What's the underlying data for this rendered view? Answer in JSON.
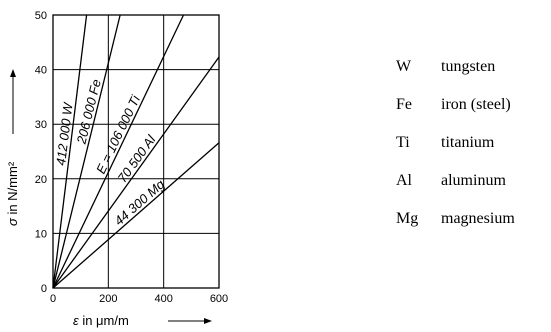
{
  "chart_data": {
    "type": "line",
    "xlabel_symbol": "ε",
    "xlabel_rest": " in μm/m",
    "ylabel_symbol": "σ",
    "ylabel_rest": " in N/mm²",
    "xlim": [
      0,
      600
    ],
    "ylim": [
      0,
      50
    ],
    "x_ticks": [
      0,
      200,
      400,
      600
    ],
    "y_ticks": [
      0,
      10,
      20,
      30,
      40,
      50
    ],
    "grid": true,
    "series": [
      {
        "name": "W",
        "label": "412 000 W",
        "modulus": 412000,
        "x": [
          0,
          121.4
        ],
        "y": [
          0,
          50
        ]
      },
      {
        "name": "Fe",
        "label": "206 000 Fe",
        "modulus": 206000,
        "x": [
          0,
          242.7
        ],
        "y": [
          0,
          50
        ]
      },
      {
        "name": "Ti",
        "label": "E = 106 000 Ti",
        "modulus": 106000,
        "x": [
          0,
          471.7
        ],
        "y": [
          0,
          50
        ]
      },
      {
        "name": "Al",
        "label": "70 500 Al",
        "modulus": 70500,
        "x": [
          0,
          600
        ],
        "y": [
          0,
          42.3
        ]
      },
      {
        "name": "Mg",
        "label": "44 300 Mg",
        "modulus": 44300,
        "x": [
          0,
          600
        ],
        "y": [
          0,
          26.6
        ]
      }
    ]
  },
  "legend": [
    {
      "symbol": "W",
      "name": "tungsten"
    },
    {
      "symbol": "Fe",
      "name": "iron (steel)"
    },
    {
      "symbol": "Ti",
      "name": "titanium"
    },
    {
      "symbol": "Al",
      "name": "aluminum"
    },
    {
      "symbol": "Mg",
      "name": "magnesium"
    }
  ]
}
